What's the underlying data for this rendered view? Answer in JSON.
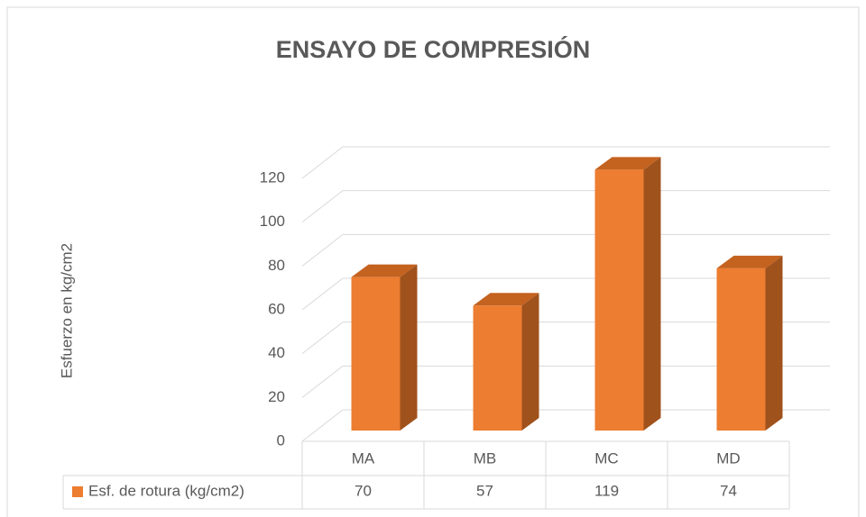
{
  "chart_data": {
    "type": "bar3d",
    "title": "ENSAYO DE COMPRESIÓN",
    "y_label": "Esfuerzo en kg/cm2",
    "categories": [
      "MA",
      "MB",
      "MC",
      "MD"
    ],
    "series": [
      {
        "name": "Esf. de rotura (kg/cm2)",
        "color": "#ed7d31",
        "values": [
          70,
          57,
          119,
          74
        ]
      }
    ],
    "ylim": [
      0,
      120
    ],
    "yticks": [
      0,
      20,
      40,
      60,
      80,
      100,
      120
    ],
    "grid": true,
    "data_table": true
  }
}
